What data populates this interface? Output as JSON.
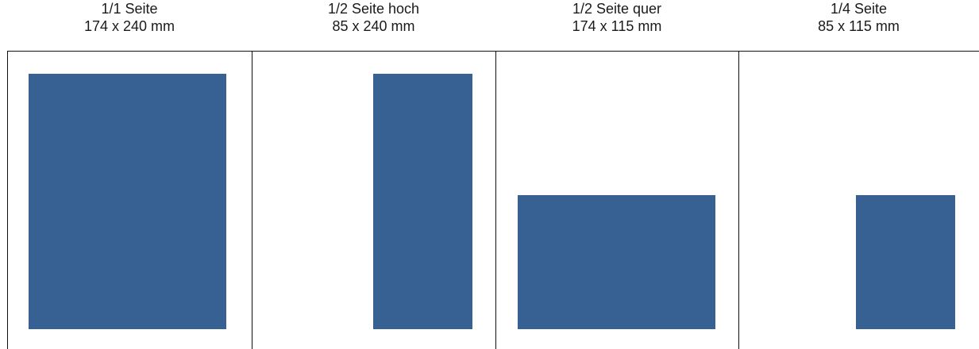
{
  "colors": {
    "block_fill": "#376193",
    "rule": "#111111",
    "background": "#ffffff"
  },
  "formats": [
    {
      "name": "1/1 Seite",
      "size": "174 x 240 mm"
    },
    {
      "name": "1/2 Seite hoch",
      "size": "85 x 240 mm"
    },
    {
      "name": "1/2 Seite quer",
      "size": "174 x 115 mm"
    },
    {
      "name": "1/4 Seite",
      "size": "85 x 115 mm"
    }
  ]
}
